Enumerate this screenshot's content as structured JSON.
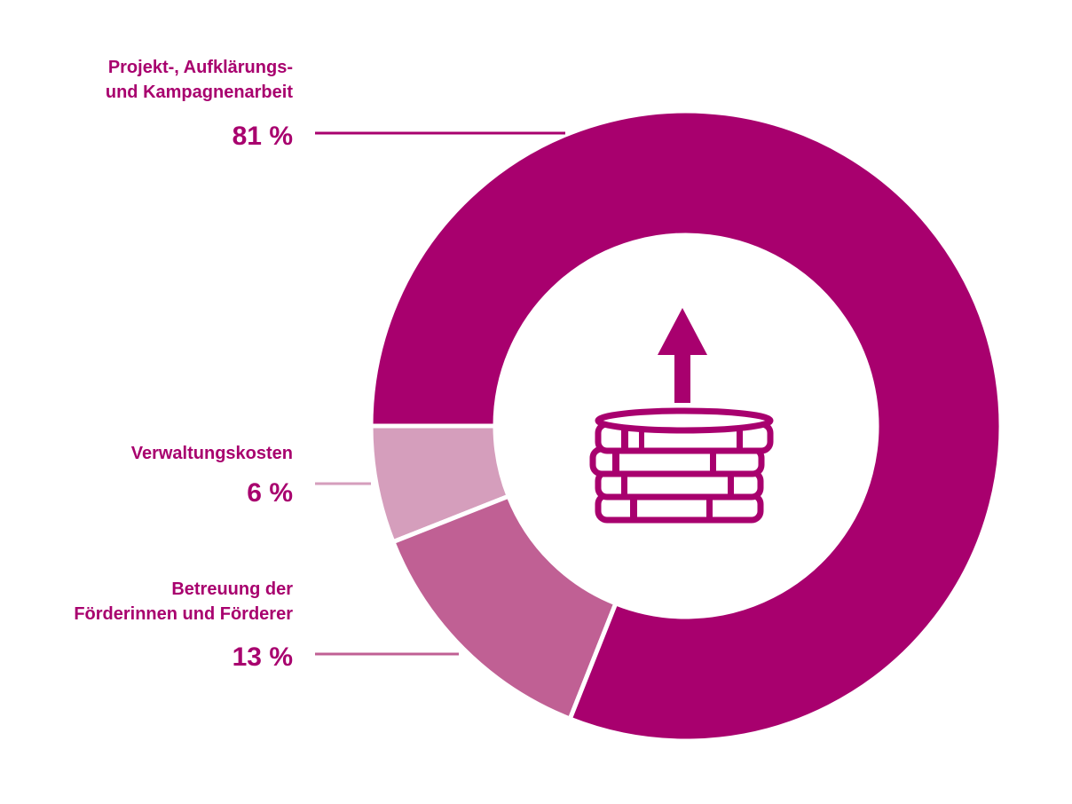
{
  "chart_data": {
    "type": "donut",
    "categories": [
      [
        "Projekt-, Aufklärungs-",
        "und Kampagnenarbeit"
      ],
      [
        "Betreuung der",
        "Förderinnen und Förderer"
      ],
      [
        "Verwaltungskosten"
      ]
    ],
    "values": [
      81,
      13,
      6
    ],
    "value_labels": [
      "81 %",
      "13 %",
      "6 %"
    ],
    "colors": [
      "#a8006e",
      "#c06094",
      "#d59ebc"
    ]
  }
}
